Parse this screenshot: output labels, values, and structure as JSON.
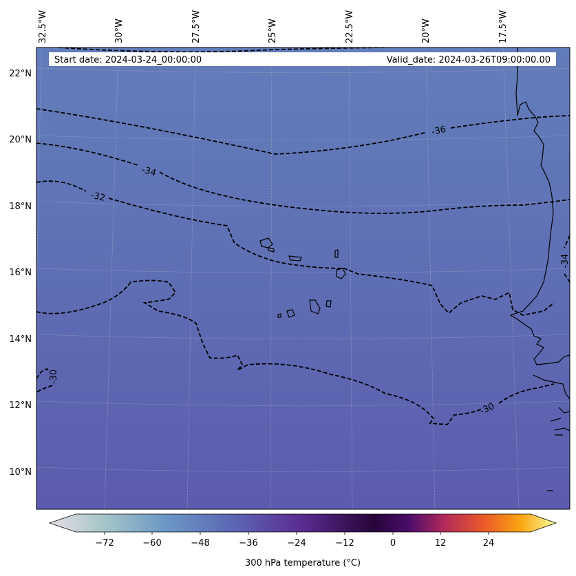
{
  "header": {
    "start_label": "Start date: 2024-03-24_00:00:00",
    "valid_label": "Valid_date: 2024-03-26T09:00:00.00"
  },
  "map": {
    "lon_labels": [
      "32.5°W",
      "30°W",
      "27.5°W",
      "25°W",
      "22.5°W",
      "20°W",
      "17.5°W"
    ],
    "lat_labels": [
      "22°N",
      "20°N",
      "18°N",
      "16°N",
      "14°N",
      "12°N",
      "10°N"
    ],
    "field_color_north": "#627dbb",
    "field_color_south": "#5c5bad",
    "contour_labels": [
      "-36",
      "-34",
      "-32",
      "-34",
      "-30",
      "-30"
    ]
  },
  "colorbar": {
    "ticks": [
      "−72",
      "−60",
      "−48",
      "−36",
      "−24",
      "−12",
      "0",
      "12",
      "24"
    ],
    "label": "300 hPa temperature (°C)",
    "cmap": [
      "#e6dde7",
      "#a9c8c8",
      "#6a98c6",
      "#5c63b2",
      "#592c8f",
      "#250639",
      "#4b0c6b",
      "#b22a5a",
      "#ec5b27",
      "#f9a511",
      "#fbfd9d"
    ]
  }
}
